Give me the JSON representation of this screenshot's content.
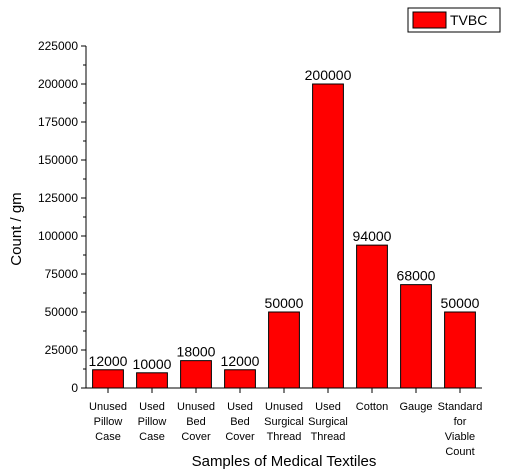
{
  "chart_data": {
    "type": "bar",
    "categories": [
      [
        "Unused",
        "Pillow",
        "Case"
      ],
      [
        "Used",
        "Pillow",
        "Case"
      ],
      [
        "Unused",
        "Bed",
        "Cover"
      ],
      [
        "Used",
        "Bed",
        "Cover"
      ],
      [
        "Unused",
        "Surgical",
        "Thread"
      ],
      [
        "Used",
        "Surgical",
        "Thread"
      ],
      [
        "Cotton"
      ],
      [
        "Gauge"
      ],
      [
        "Standard",
        "for",
        "Viable",
        "Count"
      ]
    ],
    "series": [
      {
        "name": "TVBC",
        "color": "#ff0000",
        "values": [
          12000,
          10000,
          18000,
          12000,
          50000,
          200000,
          94000,
          68000,
          50000
        ],
        "labels": [
          "12000",
          "10000",
          "18000",
          "12000",
          "50000",
          "200000",
          "94000",
          "68000",
          "50000"
        ]
      }
    ],
    "xlabel": "Samples of Medical Textiles",
    "ylabel": "Count / gm",
    "ylim": [
      0,
      225000
    ],
    "yticks": [
      0,
      25000,
      50000,
      75000,
      100000,
      125000,
      150000,
      175000,
      200000,
      225000
    ],
    "ytick_labels": [
      "0",
      "25000",
      "50000",
      "75000",
      "100000",
      "125000",
      "150000",
      "175000",
      "200000",
      "225000"
    ],
    "grid": false,
    "legend_position": "top-right"
  }
}
